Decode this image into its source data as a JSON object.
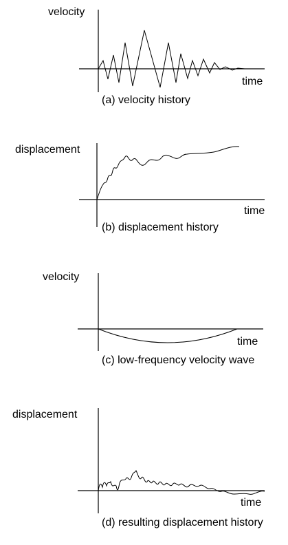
{
  "panels": [
    {
      "y_label": "velocity",
      "x_label": "time",
      "caption": "(a) velocity history"
    },
    {
      "y_label": "displacement",
      "x_label": "time",
      "caption": "(b) displacement history"
    },
    {
      "y_label": "velocity",
      "x_label": "time",
      "caption": "(c) low-frequency velocity wave"
    },
    {
      "y_label": "displacement",
      "x_label": "time",
      "caption": "(d) resulting displacement history"
    }
  ]
}
